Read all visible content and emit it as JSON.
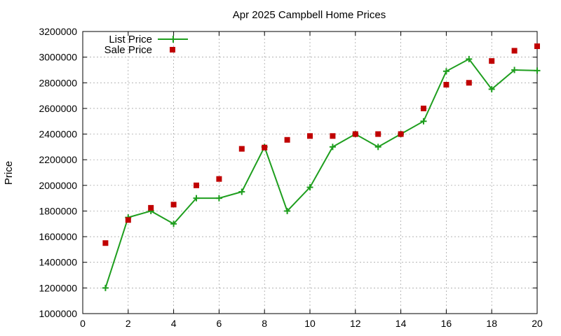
{
  "chart_data": {
    "type": "line",
    "title": "Apr 2025 Campbell Home Prices",
    "xlabel": "",
    "ylabel": "Price",
    "xlim": [
      0,
      20
    ],
    "ylim": [
      1000000,
      3200000
    ],
    "x_ticks": [
      0,
      2,
      4,
      6,
      8,
      10,
      12,
      14,
      16,
      18,
      20
    ],
    "y_ticks": [
      1000000,
      1200000,
      1400000,
      1600000,
      1800000,
      2000000,
      2200000,
      2400000,
      2600000,
      2800000,
      3000000,
      3200000
    ],
    "grid": true,
    "legend_position": "top-left",
    "series": [
      {
        "name": "List Price",
        "style": "line-with-plus-markers",
        "color": "#1e9e1e",
        "x": [
          1,
          2,
          3,
          4,
          5,
          6,
          7,
          8,
          9,
          10,
          11,
          12,
          13,
          14,
          15,
          16,
          17,
          18,
          19,
          20
        ],
        "values": [
          1200000,
          1750000,
          1800000,
          1700000,
          1900000,
          1900000,
          1950000,
          2300000,
          1800000,
          1985000,
          2300000,
          2400000,
          2300000,
          2400000,
          2500000,
          2890000,
          2985000,
          2750000,
          2900000,
          2895000
        ]
      },
      {
        "name": "Sale Price",
        "style": "square-markers",
        "color": "#c00000",
        "x": [
          1,
          2,
          3,
          4,
          5,
          6,
          7,
          8,
          9,
          10,
          11,
          12,
          13,
          14,
          15,
          16,
          17,
          18,
          19,
          20
        ],
        "values": [
          1550000,
          1730000,
          1825000,
          1850000,
          2000000,
          2050000,
          2285000,
          2295000,
          2355000,
          2385000,
          2385000,
          2400000,
          2400000,
          2400000,
          2600000,
          2785000,
          2800000,
          2970000,
          3050000,
          3085000
        ]
      }
    ]
  }
}
